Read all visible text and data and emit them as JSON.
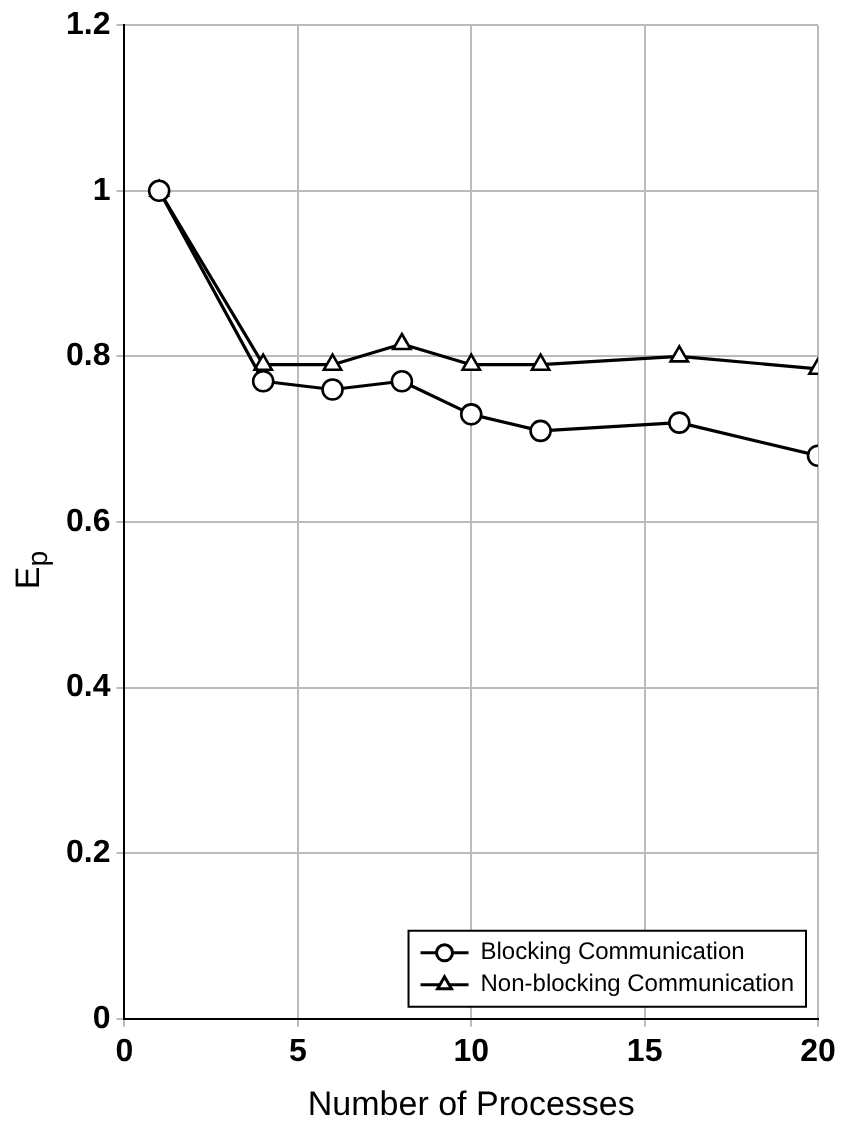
{
  "chart_data": {
    "type": "line",
    "xlabel": "Number of Processes",
    "ylabel": "E$_{p}$",
    "x": [
      1,
      4,
      6,
      8,
      10,
      12,
      16,
      20
    ],
    "series": [
      {
        "name": "Blocking Communication",
        "color": "#000000",
        "marker": "circle",
        "values": [
          1,
          0.77,
          0.76,
          0.77,
          0.73,
          0.71,
          0.72,
          0.68
        ]
      },
      {
        "name": "Non-blocking Communication",
        "color": "#000000",
        "marker": "triangle",
        "values": [
          1,
          0.79,
          0.79,
          0.815,
          0.79,
          0.79,
          0.8,
          0.785
        ]
      }
    ],
    "xlim": [
      0,
      20
    ],
    "xticks": [
      0,
      5,
      10,
      15,
      20
    ],
    "ylim": [
      0,
      1.2
    ],
    "yticks": [
      0,
      0.2,
      0.4,
      0.6,
      0.8,
      1,
      1.2
    ],
    "grid": true,
    "legend": "bottom right",
    "line_style": "solid"
  }
}
